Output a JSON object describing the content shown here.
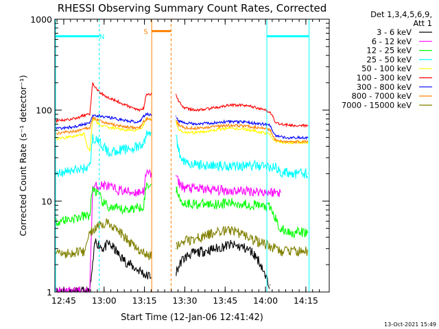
{
  "chart_data": {
    "type": "line",
    "title": "RHESSI Observing Summary Count Rates, Corrected",
    "xlabel": "Start Time (12-Jan-06 12:41:42)",
    "ylabel": "Corrected Count Rate (s⁻¹ detector⁻¹)",
    "yscale": "log",
    "ylim": [
      1,
      1000
    ],
    "xlim_minutes": [
      0,
      102
    ],
    "x_tick_labels": [
      "12:45",
      "13:00",
      "13:15",
      "13:30",
      "13:45",
      "14:00",
      "14:15"
    ],
    "x_tick_minutes": [
      3.3,
      18.3,
      33.3,
      48.3,
      63.3,
      78.3,
      93.3
    ],
    "y_tick_labels": [
      "1",
      "10",
      "100",
      "1000"
    ],
    "y_tick_values": [
      1,
      10,
      100,
      1000
    ],
    "grid": false,
    "legend_header": [
      "Det 1,3,4,5,6,9,",
      "Att 1"
    ],
    "legend_position": "top-right",
    "timestamp": "13-Oct-2021 15:49",
    "data_gap_minutes": [
      [
        36,
        45
      ]
    ],
    "series": [
      {
        "name": "3 - 6 keV",
        "color": "#000000",
        "x": [
          0,
          13,
          15,
          16,
          18,
          20,
          22,
          24,
          26,
          28,
          30,
          32,
          34,
          45,
          47,
          50,
          55,
          60,
          65,
          70,
          73,
          75,
          77,
          78,
          80
        ],
        "y": [
          1,
          1,
          3.6,
          3.4,
          3,
          3.4,
          3,
          2.5,
          2.2,
          2,
          1.8,
          1.7,
          1.5,
          1.6,
          2.2,
          2.6,
          2.8,
          3,
          3.3,
          3.1,
          2.8,
          2.4,
          1.9,
          1.5,
          1.2
        ]
      },
      {
        "name": "6 - 12 keV",
        "color": "#ff00ff",
        "x": [
          0,
          13,
          14,
          16,
          18,
          20,
          22,
          25,
          28,
          31,
          33,
          34,
          45,
          46,
          48,
          55,
          60,
          65,
          70,
          75,
          80,
          84
        ],
        "y": [
          1,
          1,
          14,
          14.5,
          15,
          14.5,
          13.5,
          13,
          12.5,
          12.5,
          13,
          20,
          19,
          16,
          14,
          13.5,
          13.2,
          13,
          13,
          12.8,
          12.5,
          12.5
        ]
      },
      {
        "name": "12 - 25 keV",
        "color": "#00ff00",
        "x": [
          0,
          4,
          8,
          11,
          13,
          14,
          16,
          18,
          20,
          22,
          25,
          28,
          31,
          33,
          34,
          45,
          46,
          48,
          55,
          60,
          65,
          70,
          75,
          80,
          84,
          88,
          92,
          94
        ],
        "y": [
          6,
          6.2,
          6.5,
          6.8,
          7,
          14,
          12,
          9.5,
          8.5,
          8.3,
          8,
          8.2,
          8.5,
          9,
          15,
          14,
          11,
          9.5,
          9.2,
          9.3,
          9.5,
          9.3,
          9,
          8.5,
          4.8,
          4.5,
          4.5,
          4.5
        ]
      },
      {
        "name": "25 - 50 keV",
        "color": "#00ffff",
        "x": [
          0,
          4,
          8,
          11,
          13,
          14,
          16,
          18,
          20,
          23,
          26,
          29,
          31,
          33,
          34,
          45,
          46,
          48,
          52,
          58,
          64,
          70,
          76,
          80,
          82,
          84,
          88,
          92,
          94
        ],
        "y": [
          20,
          21,
          22,
          23,
          24,
          50,
          45,
          40,
          34,
          36,
          37,
          38,
          39,
          42,
          55,
          53,
          35,
          28,
          25,
          24.5,
          24.5,
          24.5,
          24.5,
          24,
          23,
          21,
          20,
          20,
          20
        ]
      },
      {
        "name": "50 - 100 keV",
        "color": "#ffff00",
        "x": [
          0,
          4,
          8,
          11,
          12,
          13,
          14,
          16,
          18,
          21,
          24,
          27,
          30,
          32,
          33,
          34,
          45,
          46,
          48,
          52,
          57,
          62,
          66,
          70,
          74,
          78,
          80,
          81,
          82,
          85,
          88,
          92,
          94
        ],
        "y": [
          48,
          50,
          52,
          55,
          40,
          36,
          80,
          72,
          66,
          64,
          62,
          60,
          60,
          62,
          70,
          80,
          75,
          62,
          57,
          56,
          59,
          62,
          63,
          62,
          59,
          56,
          54,
          48,
          46,
          44,
          44,
          44,
          44
        ]
      },
      {
        "name": "100 - 300 keV",
        "color": "#ff0000",
        "x": [
          0,
          4,
          8,
          11,
          13,
          14,
          15,
          17,
          19,
          22,
          25,
          28,
          31,
          33,
          34,
          45,
          46,
          48,
          52,
          56,
          60,
          64,
          68,
          72,
          76,
          79,
          80,
          81,
          82,
          84,
          88,
          92,
          94
        ],
        "y": [
          75,
          78,
          82,
          88,
          90,
          200,
          175,
          155,
          142,
          130,
          118,
          108,
          100,
          105,
          150,
          150,
          125,
          106,
          100,
          102,
          107,
          112,
          114,
          112,
          104,
          98,
          96,
          85,
          73,
          70,
          68,
          68,
          68
        ]
      },
      {
        "name": "300 - 800 keV",
        "color": "#0000ff",
        "x": [
          0,
          4,
          8,
          11,
          13,
          14,
          16,
          18,
          21,
          24,
          27,
          30,
          32,
          33,
          34,
          45,
          46,
          48,
          52,
          57,
          62,
          66,
          70,
          74,
          78,
          80,
          81,
          82,
          85,
          88,
          92,
          94
        ],
        "y": [
          62,
          64,
          66,
          70,
          72,
          88,
          87,
          85,
          82,
          79,
          76,
          74,
          76,
          85,
          90,
          86,
          76,
          72,
          71,
          72,
          74,
          75,
          74,
          72,
          70,
          68,
          58,
          52,
          50,
          50,
          50,
          50
        ]
      },
      {
        "name": "800 - 7000 keV",
        "color": "#ff8000",
        "x": [
          0,
          4,
          8,
          11,
          13,
          14,
          16,
          18,
          21,
          24,
          27,
          30,
          32,
          33,
          34,
          45,
          46,
          48,
          52,
          57,
          62,
          66,
          70,
          74,
          78,
          80,
          81,
          82,
          85,
          88,
          92,
          94
        ],
        "y": [
          55,
          57,
          59,
          62,
          64,
          82,
          78,
          74,
          70,
          67,
          65,
          64,
          66,
          75,
          80,
          78,
          69,
          64,
          63,
          65,
          67,
          68,
          67,
          65,
          63,
          61,
          52,
          47,
          45,
          45,
          45,
          45
        ]
      },
      {
        "name": "7000 - 15000 keV",
        "color": "#808000",
        "x": [
          0,
          4,
          8,
          11,
          13,
          15,
          17,
          19,
          21,
          23,
          26,
          30,
          33,
          34,
          45,
          46,
          48,
          52,
          56,
          60,
          64,
          67,
          70,
          73,
          76,
          80,
          84,
          88,
          92,
          94
        ],
        "y": [
          2.6,
          2.6,
          2.7,
          2.8,
          4.5,
          5.2,
          5.6,
          5.8,
          5.5,
          5,
          4,
          3,
          2.6,
          2.5,
          3,
          3.4,
          3.6,
          3.8,
          4.2,
          4.6,
          4.8,
          4.6,
          4.2,
          3.8,
          3.5,
          3.2,
          2.8,
          2.8,
          2.8,
          2.8
        ]
      }
    ],
    "annotations": [
      {
        "label": "N",
        "color": "#00ffff",
        "level": 650,
        "from_minutes": 0,
        "to_minutes": 16.5,
        "label_at_minutes": 17.5,
        "marker_minutes": [
          16.5
        ]
      },
      {
        "label": "",
        "color": "#00ffff",
        "level": 650,
        "from_minutes": 78.8,
        "to_minutes": 94.5,
        "marker_minutes": [
          78.8,
          94.5
        ]
      },
      {
        "label": "S",
        "color": "#ff8000",
        "level": 740,
        "from_minutes": 36,
        "to_minutes": 43.2,
        "label_at_minutes": 33.8,
        "marker_minutes": [
          36,
          43.2
        ]
      }
    ]
  }
}
